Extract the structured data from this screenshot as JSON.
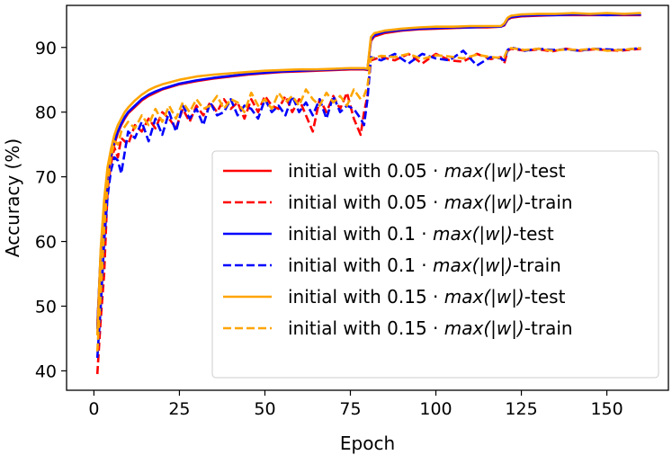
{
  "chart_data": {
    "type": "line",
    "title": "",
    "xlabel": "Epoch",
    "ylabel": "Accuracy (%)",
    "xlim": [
      -8,
      168
    ],
    "ylim": [
      37,
      96.5
    ],
    "xticks": [
      0,
      25,
      50,
      75,
      100,
      125,
      150
    ],
    "yticks": [
      40,
      50,
      60,
      70,
      80,
      90
    ],
    "grid": false,
    "legend_position": "lower-right",
    "series": [
      {
        "name": "initial with 0.05·max(|w|)-test",
        "legend_prefix": "initial with 0.05",
        "legend_math": "max(|w|)",
        "legend_suffix": "-test",
        "color": "#ff0000",
        "dash": "solid",
        "x": [
          1,
          2,
          3,
          4,
          5,
          6,
          7,
          8,
          9,
          10,
          12,
          14,
          16,
          18,
          20,
          25,
          30,
          35,
          40,
          45,
          50,
          55,
          60,
          65,
          70,
          75,
          79,
          80,
          81,
          82,
          85,
          90,
          95,
          100,
          105,
          110,
          115,
          119,
          120,
          121,
          122,
          125,
          130,
          135,
          140,
          145,
          150,
          155,
          160
        ],
        "y": [
          47.0,
          58.0,
          65.0,
          70.0,
          73.0,
          75.0,
          76.8,
          78.0,
          79.0,
          79.8,
          80.8,
          81.8,
          82.5,
          83.0,
          83.5,
          84.3,
          84.8,
          85.2,
          85.5,
          85.8,
          86.0,
          86.2,
          86.3,
          86.4,
          86.5,
          86.6,
          86.6,
          86.5,
          91.0,
          91.7,
          92.2,
          92.6,
          92.8,
          92.9,
          93.0,
          93.1,
          93.1,
          93.2,
          93.4,
          94.3,
          94.6,
          94.8,
          94.9,
          95.0,
          95.0,
          95.0,
          95.0,
          95.0,
          95.0
        ]
      },
      {
        "name": "initial with 0.05·max(|w|)-train",
        "legend_prefix": "initial with 0.05",
        "legend_math": "max(|w|)",
        "legend_suffix": "-train",
        "color": "#ff0000",
        "dash": "dashed",
        "x": [
          1,
          2,
          3,
          4,
          5,
          6,
          7,
          8,
          10,
          12,
          14,
          16,
          18,
          20,
          22,
          24,
          26,
          28,
          30,
          32,
          34,
          36,
          38,
          40,
          42,
          44,
          46,
          48,
          50,
          52,
          54,
          56,
          58,
          60,
          62,
          64,
          66,
          68,
          70,
          72,
          74,
          76,
          78,
          79,
          80,
          81,
          84,
          88,
          92,
          96,
          100,
          104,
          108,
          112,
          116,
          119,
          120,
          121,
          122,
          126,
          130,
          134,
          138,
          142,
          146,
          150,
          154,
          158,
          160
        ],
        "y": [
          39.5,
          48.0,
          55.0,
          68.0,
          72.0,
          74.5,
          73.0,
          76.0,
          75.0,
          78.0,
          77.0,
          79.0,
          77.5,
          80.0,
          79.0,
          77.5,
          80.5,
          78.5,
          81.0,
          79.5,
          81.5,
          80.0,
          82.0,
          80.5,
          81.5,
          79.0,
          82.0,
          80.0,
          82.5,
          81.0,
          80.5,
          82.5,
          80.0,
          82.0,
          79.5,
          77.0,
          82.0,
          80.0,
          82.5,
          80.5,
          83.0,
          79.0,
          76.5,
          80.0,
          82.5,
          88.0,
          88.5,
          88.0,
          89.0,
          87.5,
          89.0,
          88.0,
          87.8,
          89.0,
          88.2,
          88.5,
          87.5,
          89.5,
          89.8,
          89.5,
          89.7,
          89.4,
          89.8,
          89.5,
          89.7,
          89.6,
          89.5,
          89.7,
          89.8
        ]
      },
      {
        "name": "initial with 0.1·max(|w|)-test",
        "legend_prefix": "initial with 0.1",
        "legend_math": "max(|w|)",
        "legend_suffix": "-test",
        "color": "#0000ff",
        "dash": "solid",
        "x": [
          1,
          2,
          3,
          4,
          5,
          6,
          7,
          8,
          9,
          10,
          12,
          14,
          16,
          18,
          20,
          25,
          30,
          35,
          40,
          45,
          50,
          55,
          60,
          65,
          70,
          75,
          79,
          80,
          81,
          82,
          85,
          90,
          95,
          100,
          105,
          110,
          115,
          119,
          120,
          121,
          122,
          125,
          130,
          135,
          140,
          145,
          150,
          155,
          160
        ],
        "y": [
          46.5,
          58.5,
          65.5,
          70.5,
          73.3,
          75.5,
          77.0,
          78.2,
          79.2,
          80.0,
          81.0,
          82.0,
          82.7,
          83.2,
          83.6,
          84.4,
          84.9,
          85.3,
          85.6,
          85.9,
          86.1,
          86.3,
          86.4,
          86.5,
          86.6,
          86.7,
          86.7,
          86.6,
          91.2,
          91.9,
          92.4,
          92.7,
          92.9,
          93.0,
          93.1,
          93.1,
          93.2,
          93.2,
          93.5,
          94.4,
          94.7,
          94.9,
          95.0,
          95.0,
          95.1,
          95.1,
          95.0,
          95.1,
          95.1
        ]
      },
      {
        "name": "initial with 0.1·max(|w|)-train",
        "legend_prefix": "initial with 0.1",
        "legend_math": "max(|w|)",
        "legend_suffix": "-train",
        "color": "#0000ff",
        "dash": "dashed",
        "x": [
          1,
          2,
          3,
          4,
          5,
          6,
          7,
          8,
          10,
          12,
          14,
          16,
          18,
          20,
          22,
          24,
          26,
          28,
          30,
          32,
          34,
          36,
          38,
          40,
          42,
          44,
          46,
          48,
          50,
          52,
          54,
          56,
          58,
          60,
          62,
          64,
          66,
          68,
          70,
          72,
          74,
          76,
          78,
          79,
          80,
          81,
          84,
          88,
          92,
          96,
          100,
          104,
          108,
          112,
          116,
          119,
          120,
          121,
          122,
          126,
          130,
          134,
          138,
          142,
          146,
          150,
          154,
          158,
          160
        ],
        "y": [
          42.0,
          50.0,
          60.0,
          67.0,
          71.0,
          73.0,
          72.5,
          70.5,
          77.0,
          76.0,
          78.5,
          75.5,
          79.0,
          76.5,
          80.0,
          77.0,
          81.0,
          79.0,
          80.5,
          78.0,
          81.5,
          79.5,
          80.0,
          82.0,
          79.5,
          81.0,
          80.5,
          79.0,
          82.0,
          80.0,
          81.0,
          79.5,
          82.5,
          80.0,
          81.5,
          79.5,
          82.0,
          79.0,
          82.5,
          80.0,
          81.0,
          80.5,
          79.0,
          78.0,
          82.0,
          88.5,
          88.0,
          89.0,
          87.5,
          89.0,
          88.3,
          88.0,
          89.5,
          87.2,
          88.5,
          88.3,
          88.0,
          89.6,
          90.0,
          89.5,
          89.8,
          89.6,
          89.7,
          89.5,
          89.8,
          89.7,
          89.6,
          89.8,
          89.9
        ]
      },
      {
        "name": "initial with 0.15·max(|w|)-test",
        "legend_prefix": "initial with 0.15",
        "legend_math": "max(|w|)",
        "legend_suffix": "-test",
        "color": "#ffa500",
        "dash": "solid",
        "x": [
          1,
          2,
          3,
          4,
          5,
          6,
          7,
          8,
          9,
          10,
          12,
          14,
          16,
          18,
          20,
          25,
          30,
          35,
          40,
          45,
          50,
          55,
          60,
          65,
          70,
          75,
          79,
          80,
          81,
          82,
          85,
          90,
          95,
          100,
          105,
          110,
          115,
          119,
          120,
          121,
          122,
          125,
          130,
          135,
          140,
          145,
          150,
          155,
          160
        ],
        "y": [
          45.5,
          59.0,
          66.5,
          71.5,
          74.3,
          76.5,
          78.0,
          79.0,
          80.0,
          80.7,
          81.8,
          82.7,
          83.4,
          83.9,
          84.3,
          85.0,
          85.5,
          85.8,
          86.0,
          86.2,
          86.4,
          86.5,
          86.6,
          86.6,
          86.7,
          86.8,
          86.8,
          86.7,
          91.6,
          92.2,
          92.6,
          92.9,
          93.1,
          93.2,
          93.2,
          93.3,
          93.3,
          93.3,
          93.7,
          94.6,
          94.9,
          95.1,
          95.2,
          95.2,
          95.3,
          95.2,
          95.3,
          95.2,
          95.3
        ]
      },
      {
        "name": "initial with 0.15·max(|w|)-train",
        "legend_prefix": "initial with 0.15",
        "legend_math": "max(|w|)",
        "legend_suffix": "-train",
        "color": "#ffa500",
        "dash": "dashed",
        "x": [
          1,
          2,
          3,
          4,
          5,
          6,
          7,
          8,
          10,
          12,
          14,
          16,
          18,
          20,
          22,
          24,
          26,
          28,
          30,
          32,
          34,
          36,
          38,
          40,
          42,
          44,
          46,
          48,
          50,
          52,
          54,
          56,
          58,
          60,
          62,
          64,
          66,
          68,
          70,
          72,
          74,
          76,
          78,
          79,
          80,
          81,
          84,
          88,
          92,
          96,
          100,
          104,
          108,
          112,
          116,
          119,
          120,
          121,
          122,
          126,
          130,
          134,
          138,
          142,
          146,
          150,
          154,
          158,
          160
        ],
        "y": [
          43.0,
          52.0,
          62.0,
          69.0,
          73.0,
          75.5,
          75.0,
          77.0,
          78.5,
          77.5,
          79.5,
          78.0,
          80.5,
          78.5,
          81.0,
          79.0,
          81.5,
          80.0,
          82.0,
          80.5,
          81.0,
          82.5,
          80.5,
          82.0,
          81.5,
          80.0,
          83.0,
          81.0,
          82.0,
          80.5,
          83.0,
          81.5,
          82.5,
          81.0,
          83.5,
          82.0,
          81.0,
          83.0,
          81.5,
          82.5,
          81.0,
          83.5,
          82.0,
          82.5,
          84.0,
          88.3,
          88.7,
          88.5,
          89.0,
          88.2,
          88.8,
          88.6,
          88.3,
          88.9,
          88.5,
          88.4,
          88.5,
          89.7,
          89.9,
          89.6,
          89.8,
          89.5,
          89.7,
          89.6,
          89.8,
          89.5,
          89.6,
          89.8,
          89.9
        ]
      }
    ]
  }
}
